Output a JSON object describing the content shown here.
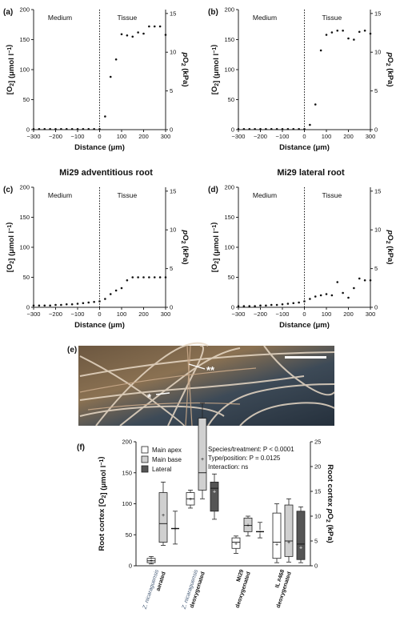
{
  "chart_data": [
    {
      "panel": "(a)",
      "type": "scatter",
      "title": "",
      "xlabel": "Distance (μm)",
      "ylabel": "[O2] (μmol l−1)",
      "y2label": "pO2 (kPa)",
      "xlim": [
        -300,
        300
      ],
      "ylim": [
        0,
        200
      ],
      "y2lim": [
        0,
        15.5
      ],
      "xticks": [
        -300,
        -200,
        -100,
        0,
        100,
        200,
        300
      ],
      "yticks": [
        0,
        50,
        100,
        150,
        200
      ],
      "y2ticks": [
        0,
        5,
        10,
        15
      ],
      "regions": [
        "Medium",
        "Tissue"
      ],
      "x": [
        -300,
        -275,
        -250,
        -225,
        -200,
        -175,
        -150,
        -125,
        -100,
        -75,
        -50,
        -25,
        0,
        25,
        50,
        75,
        100,
        125,
        150,
        175,
        200,
        225,
        250,
        275,
        300
      ],
      "y": [
        1,
        1,
        1,
        1,
        1,
        1,
        1,
        1,
        1,
        1,
        1,
        1,
        1,
        22,
        88,
        117,
        159,
        157,
        155,
        162,
        160,
        172,
        172,
        172,
        158
      ]
    },
    {
      "panel": "(b)",
      "type": "scatter",
      "title": "",
      "xlabel": "Distance (μm)",
      "ylabel": "[O2] (μmol l−1)",
      "y2label": "pO2 (kPa)",
      "xlim": [
        -300,
        300
      ],
      "ylim": [
        0,
        200
      ],
      "y2lim": [
        0,
        15.5
      ],
      "xticks": [
        -300,
        -200,
        -100,
        0,
        100,
        200,
        300
      ],
      "yticks": [
        0,
        50,
        100,
        150,
        200
      ],
      "y2ticks": [
        0,
        5,
        10,
        15
      ],
      "regions": [
        "Medium",
        "Tissue"
      ],
      "x": [
        -300,
        -275,
        -250,
        -225,
        -200,
        -175,
        -150,
        -125,
        -100,
        -75,
        -50,
        -25,
        0,
        25,
        50,
        75,
        100,
        125,
        150,
        175,
        200,
        225,
        250,
        275,
        300
      ],
      "y": [
        1,
        1,
        1,
        1,
        1,
        1,
        1,
        1,
        1,
        1,
        1,
        1,
        1,
        8,
        42,
        132,
        158,
        162,
        165,
        165,
        152,
        150,
        163,
        165,
        160
      ]
    },
    {
      "panel": "(c)",
      "type": "scatter",
      "title": "Mi29 adventitious root",
      "xlabel": "Distance (μm)",
      "ylabel": "[O2] (μmol l−1)",
      "y2label": "pO2 (kPa)",
      "xlim": [
        -300,
        300
      ],
      "ylim": [
        0,
        200
      ],
      "y2lim": [
        0,
        15.5
      ],
      "xticks": [
        -300,
        -200,
        -100,
        0,
        100,
        200,
        300
      ],
      "yticks": [
        0,
        50,
        100,
        150,
        200
      ],
      "y2ticks": [
        0,
        5,
        10,
        15
      ],
      "regions": [
        "Medium",
        "Tissue"
      ],
      "x": [
        -300,
        -275,
        -250,
        -225,
        -200,
        -175,
        -150,
        -125,
        -100,
        -75,
        -50,
        -25,
        0,
        25,
        50,
        75,
        100,
        125,
        150,
        175,
        200,
        225,
        250,
        275,
        300
      ],
      "y": [
        3,
        3,
        3,
        3,
        4,
        4,
        5,
        5,
        6,
        7,
        8,
        9,
        10,
        14,
        22,
        28,
        32,
        45,
        50,
        50,
        50,
        50,
        50,
        50,
        50
      ]
    },
    {
      "panel": "(d)",
      "type": "scatter",
      "title": "Mi29 lateral root",
      "xlabel": "Distance (μm)",
      "ylabel": "[O2] (μmol l−1)",
      "y2label": "pO2 (kPa)",
      "xlim": [
        -300,
        300
      ],
      "ylim": [
        0,
        200
      ],
      "y2lim": [
        0,
        15.5
      ],
      "xticks": [
        -300,
        -200,
        -100,
        0,
        100,
        200,
        300
      ],
      "yticks": [
        0,
        50,
        100,
        150,
        200
      ],
      "y2ticks": [
        0,
        5,
        10,
        15
      ],
      "regions": [
        "Medium",
        "Tissue"
      ],
      "x": [
        -300,
        -275,
        -250,
        -225,
        -200,
        -175,
        -150,
        -125,
        -100,
        -75,
        -50,
        -25,
        0,
        25,
        50,
        75,
        100,
        125,
        150,
        175,
        200,
        225,
        250,
        275,
        300
      ],
      "y": [
        2,
        2,
        2,
        2,
        3,
        3,
        4,
        4,
        5,
        6,
        7,
        8,
        10,
        14,
        18,
        20,
        22,
        20,
        42,
        24,
        16,
        32,
        48,
        45,
        45
      ]
    },
    {
      "panel": "(f)",
      "type": "box",
      "title": "",
      "ylabel": "Root cortex [O2] (μmol l−1)",
      "y2label": "Root cortex pO2 (kPa)",
      "ylim": [
        0,
        200
      ],
      "y2lim": [
        0,
        25
      ],
      "yticks": [
        0,
        50,
        100,
        150,
        200
      ],
      "y2ticks": [
        0,
        5,
        10,
        15,
        20,
        25
      ],
      "legend": [
        {
          "name": "Main apex",
          "color": "#ffffff"
        },
        {
          "name": "Main base",
          "color": "#d0d0d0"
        },
        {
          "name": "Lateral",
          "color": "#555555"
        }
      ],
      "stats": [
        "Species/treatment: P < 0.0001",
        "Type/position: P = 0.0125",
        "Interaction: ns"
      ],
      "groups": [
        {
          "species": "Z. nicaraguensis",
          "treatment": "aerated",
          "boxes": [
            {
              "type": "Main apex",
              "min": 3,
              "q1": 5,
              "median": 8,
              "q3": 12,
              "max": 15,
              "mean": 9
            },
            {
              "type": "Main base",
              "min": 33,
              "q1": 38,
              "median": 68,
              "q3": 118,
              "max": 135,
              "mean": 82
            },
            {
              "type": "Lateral",
              "min": 35,
              "q1": 60,
              "median": 60,
              "q3": 60,
              "max": 88,
              "mean": 60,
              "line": true
            }
          ]
        },
        {
          "species": "Z. nicaraguensis",
          "treatment": "deoxygenated",
          "boxes": [
            {
              "type": "Main apex",
              "min": 93,
              "q1": 98,
              "median": 108,
              "q3": 118,
              "max": 122,
              "mean": 108
            },
            {
              "type": "Main base",
              "min": 108,
              "q1": 122,
              "median": 150,
              "q3": 238,
              "max": 262,
              "mean": 172
            },
            {
              "type": "Lateral",
              "min": 75,
              "q1": 88,
              "median": 125,
              "q3": 135,
              "max": 148,
              "mean": 120
            }
          ]
        },
        {
          "species": "Mi29",
          "treatment": "deoxygenated",
          "boxes": [
            {
              "type": "Main apex",
              "min": 20,
              "q1": 28,
              "median": 38,
              "q3": 45,
              "max": 48,
              "mean": 36
            },
            {
              "type": "Main base",
              "min": 48,
              "q1": 55,
              "median": 65,
              "q3": 77,
              "max": 80,
              "mean": 66
            },
            {
              "type": "Lateral",
              "min": 45,
              "q1": 52,
              "median": 55,
              "q3": 58,
              "max": 70,
              "mean": 55,
              "line": true
            }
          ]
        },
        {
          "species": "IL #468",
          "treatment": "deoxygenated",
          "boxes": [
            {
              "type": "Main apex",
              "min": 5,
              "q1": 12,
              "median": 38,
              "q3": 85,
              "max": 100,
              "mean": 35
            },
            {
              "type": "Main base",
              "min": 6,
              "q1": 15,
              "median": 40,
              "q3": 98,
              "max": 108,
              "mean": 38
            },
            {
              "type": "Lateral",
              "min": 5,
              "q1": 10,
              "median": 35,
              "q3": 88,
              "max": 95,
              "mean": 30
            }
          ]
        }
      ]
    }
  ],
  "photo": {
    "panel": "(e)",
    "annotations": [
      "**",
      "*"
    ]
  }
}
